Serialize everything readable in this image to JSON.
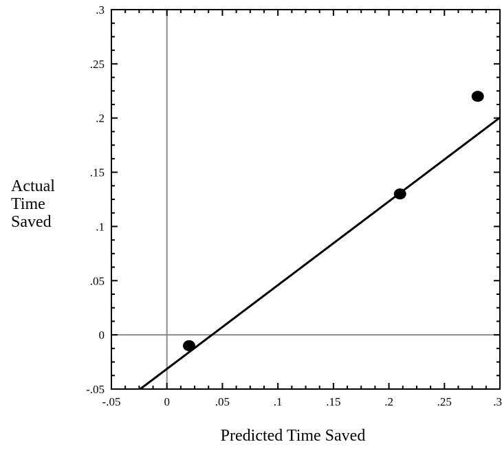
{
  "chart_data": {
    "type": "scatter",
    "title": "",
    "xlabel": "Predicted Time Saved",
    "ylabel_lines": [
      "Actual",
      "Time",
      "Saved"
    ],
    "xlim": [
      -0.05,
      0.3
    ],
    "ylim": [
      -0.05,
      0.3
    ],
    "x_ticks": [
      -0.05,
      0,
      0.05,
      0.1,
      0.15,
      0.2,
      0.25,
      0.3
    ],
    "x_tick_labels": [
      "-.05",
      "0",
      ".05",
      ".1",
      ".15",
      ".2",
      ".25",
      ".3"
    ],
    "y_ticks": [
      -0.05,
      0,
      0.05,
      0.1,
      0.15,
      0.2,
      0.25,
      0.3
    ],
    "y_tick_labels": [
      "-.05",
      "0",
      ".05",
      ".1",
      ".15",
      ".2",
      ".25",
      ".3"
    ],
    "grid": false,
    "reference_lines": {
      "x": 0,
      "y": 0
    },
    "points": [
      {
        "x": 0.02,
        "y": -0.01
      },
      {
        "x": 0.21,
        "y": 0.13
      },
      {
        "x": 0.28,
        "y": 0.22
      }
    ],
    "fit_line": {
      "slope": 0.7727,
      "intercept": -0.0314
    },
    "colors": {
      "points": "#000000",
      "fit_line": "#000000",
      "reference_lines": "#8c8c8c",
      "frame": "#000000"
    }
  }
}
